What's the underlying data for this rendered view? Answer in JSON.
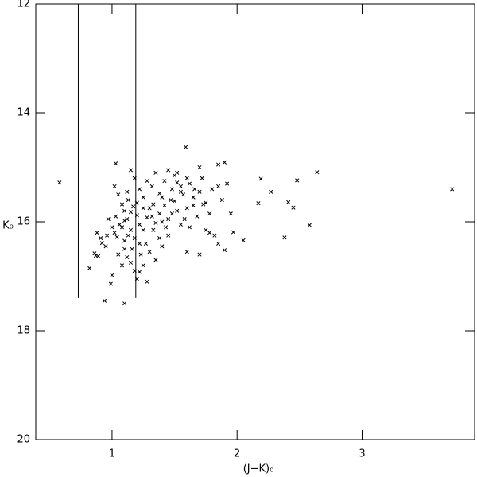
{
  "chart_data": {
    "type": "scatter",
    "x_label": "(J−K)₀",
    "y_label": "K₀",
    "xlim": [
      0.39,
      3.9
    ],
    "xticks": [
      1,
      2,
      3
    ],
    "ylim": [
      12,
      20
    ],
    "yticks": [
      12,
      14,
      16,
      18,
      20
    ],
    "y_inverted": true,
    "color": "#000000",
    "vertical_lines": [
      {
        "x": 0.73,
        "y": [
          12,
          17.4
        ]
      },
      {
        "x": 1.19,
        "y": [
          12,
          17.4
        ]
      }
    ],
    "x": [
      0.58,
      3.72,
      2.64,
      2.58,
      2.38,
      2.48,
      2.41,
      2.45,
      2.27,
      2.19,
      2.17,
      2.05,
      1.97,
      1.9,
      1.59,
      1.03,
      0.94,
      1.1,
      1.0,
      0.99,
      0.82,
      0.89,
      0.88,
      0.92,
      0.86,
      0.87,
      0.91,
      0.96,
      1.02,
      1.04,
      1.08,
      1.1,
      1.12,
      1.15,
      1.13,
      1.17,
      1.2,
      1.22,
      1.25,
      1.28,
      1.3,
      1.33,
      1.35,
      1.38,
      1.4,
      1.42,
      1.45,
      1.48,
      1.5,
      1.52,
      1.55,
      1.57,
      1.6,
      1.62,
      1.65,
      1.68,
      1.7,
      1.72,
      1.75,
      1.78,
      1.8,
      1.85,
      1.88,
      1.92,
      1.95,
      1.82,
      1.75,
      1.7,
      1.6,
      1.55,
      1.45,
      1.4,
      1.35,
      1.3,
      1.25,
      1.22,
      1.2,
      1.18,
      1.15,
      1.12,
      1.1,
      1.08,
      1.05,
      1.02,
      1.05,
      1.08,
      1.1,
      1.12,
      1.15,
      1.18,
      1.22,
      1.25,
      1.28,
      1.32,
      1.35,
      1.38,
      1.42,
      1.45,
      1.5,
      1.55,
      1.58,
      1.62,
      1.65,
      1.48,
      1.43,
      1.38,
      1.33,
      1.27,
      1.23,
      1.18,
      1.15,
      1.13,
      1.1,
      1.06,
      1.03,
      1.0,
      0.97,
      0.95,
      1.2,
      1.25,
      1.32,
      1.4,
      1.47,
      1.52,
      1.6,
      1.66,
      1.73,
      1.78,
      1.85,
      1.9,
      1.85,
      1.7,
      1.52,
      1.28,
      1.22,
      1.16
    ],
    "values": [
      15.28,
      15.4,
      15.09,
      16.06,
      16.29,
      15.24,
      15.64,
      15.74,
      15.45,
      15.21,
      15.66,
      16.34,
      16.19,
      14.91,
      14.63,
      14.93,
      17.45,
      17.5,
      16.98,
      17.14,
      16.85,
      16.63,
      16.2,
      16.39,
      16.58,
      16.62,
      16.3,
      16.25,
      16.2,
      16.28,
      16.1,
      16.35,
      15.95,
      15.82,
      15.6,
      15.72,
      15.88,
      16.05,
      16.15,
      15.92,
      15.75,
      15.68,
      16.02,
      15.85,
      15.55,
      15.7,
      15.95,
      15.4,
      15.62,
      15.8,
      15.35,
      15.5,
      15.75,
      15.3,
      15.55,
      15.9,
      15.45,
      15.2,
      15.65,
      15.85,
      15.4,
      15.35,
      15.6,
      15.3,
      15.85,
      16.25,
      16.15,
      16.6,
      16.55,
      16.05,
      16.25,
      16.45,
      16.7,
      16.55,
      16.8,
      16.92,
      17.05,
      16.9,
      16.75,
      16.65,
      16.5,
      16.8,
      16.6,
      15.35,
      15.5,
      15.68,
      15.8,
      15.45,
      15.05,
      15.2,
      15.4,
      15.55,
      15.25,
      15.35,
      15.1,
      15.48,
      15.25,
      15.05,
      15.15,
      15.45,
      15.95,
      16.1,
      15.7,
      15.85,
      16.1,
      16.3,
      16.15,
      16.4,
      16.6,
      16.3,
      16.15,
      16.25,
      15.98,
      16.05,
      15.9,
      16.1,
      15.95,
      16.45,
      15.65,
      15.75,
      15.9,
      16.0,
      15.6,
      15.28,
      15.2,
      15.4,
      15.68,
      16.2,
      16.4,
      16.52,
      14.95,
      15.0,
      15.1,
      17.1,
      16.4,
      16.5
    ]
  }
}
